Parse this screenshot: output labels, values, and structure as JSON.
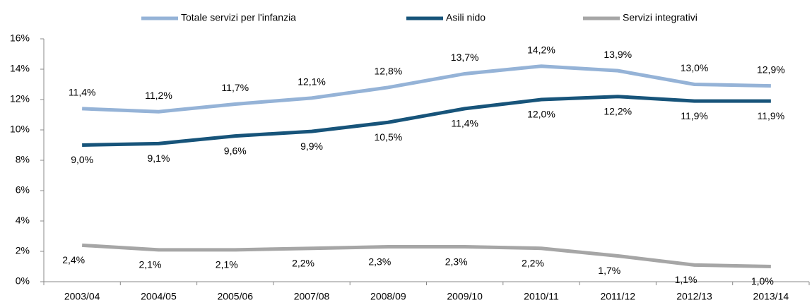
{
  "chart_data": {
    "type": "line",
    "categories": [
      "2003/04",
      "2004/05",
      "2005/06",
      "2007/08",
      "2008/09",
      "2009/10",
      "2010/11",
      "2011/12",
      "2012/13",
      "2013/14"
    ],
    "series": [
      {
        "name": "Totale servizi per l'infanzia",
        "color": "#95b3d7",
        "values": [
          11.4,
          11.2,
          11.7,
          12.1,
          12.8,
          13.7,
          14.2,
          13.9,
          13.0,
          12.9
        ],
        "value_labels": [
          "11,4%",
          "11,2%",
          "11,7%",
          "12,1%",
          "12,8%",
          "13,7%",
          "14,2%",
          "13,9%",
          "13,0%",
          "12,9%"
        ]
      },
      {
        "name": "Asili nido",
        "color": "#17547a",
        "values": [
          9.0,
          9.1,
          9.6,
          9.9,
          10.5,
          11.4,
          12.0,
          12.2,
          11.9,
          11.9
        ],
        "value_labels": [
          "9,0%",
          "9,1%",
          "9,6%",
          "9,9%",
          "10,5%",
          "11,4%",
          "12,0%",
          "12,2%",
          "11,9%",
          "11,9%"
        ]
      },
      {
        "name": "Servizi integrativi",
        "color": "#a6a6a6",
        "values": [
          2.4,
          2.1,
          2.1,
          2.2,
          2.3,
          2.3,
          2.2,
          1.7,
          1.1,
          1.0
        ],
        "value_labels": [
          "2,4%",
          "2,1%",
          "2,1%",
          "2,2%",
          "2,3%",
          "2,3%",
          "2,2%",
          "1,7%",
          "1,1%",
          "1,0%"
        ]
      }
    ],
    "ylim": [
      0,
      16
    ],
    "yticks": [
      {
        "value": 0,
        "label": "0%"
      },
      {
        "value": 2,
        "label": "2%"
      },
      {
        "value": 4,
        "label": "4%"
      },
      {
        "value": 6,
        "label": "6%"
      },
      {
        "value": 8,
        "label": "8%"
      },
      {
        "value": 10,
        "label": "10%"
      },
      {
        "value": 12,
        "label": "12%"
      },
      {
        "value": 14,
        "label": "14%"
      },
      {
        "value": 16,
        "label": "16%"
      }
    ],
    "legend": "top",
    "grid": false
  }
}
